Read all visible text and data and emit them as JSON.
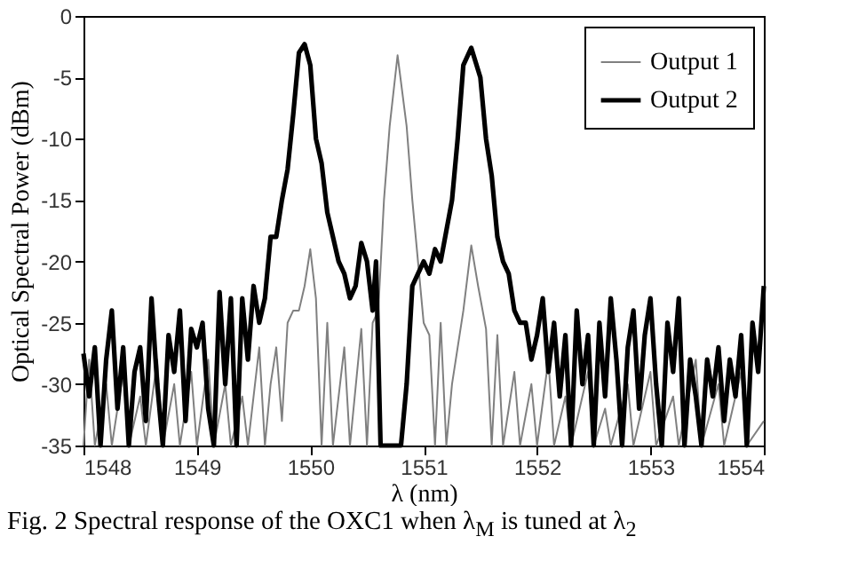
{
  "chart_data": {
    "type": "line",
    "xlabel": "λ (nm)",
    "ylabel": "Optical Spectral Power (dBm)",
    "xlim": [
      1548,
      1554
    ],
    "xticks": [
      1548,
      1549,
      1550,
      1551,
      1552,
      1553,
      1554
    ],
    "ylim": [
      -35,
      0
    ],
    "yticks": [
      -35,
      -30,
      -25,
      -20,
      -15,
      -10,
      -5,
      0
    ],
    "grid": false,
    "legend": "top right",
    "line_style": "solid",
    "marker": "none",
    "annotations": [
      "Fig. 2 Spectral response of the OXC1 when λ$_{M}$ is tuned at λ$_{2}$"
    ],
    "series": [
      {
        "name": "Output 1",
        "color": "#808080",
        "x": [
          1548.0,
          1548.05,
          1548.1,
          1548.2,
          1548.25,
          1548.35,
          1548.4,
          1548.5,
          1548.55,
          1548.65,
          1548.7,
          1548.8,
          1548.85,
          1548.95,
          1549.0,
          1549.1,
          1549.15,
          1549.25,
          1549.3,
          1549.4,
          1549.45,
          1549.55,
          1549.6,
          1549.65,
          1549.7,
          1549.75,
          1549.8,
          1549.85,
          1549.9,
          1549.95,
          1550.0,
          1550.05,
          1550.1,
          1550.15,
          1550.2,
          1550.3,
          1550.35,
          1550.45,
          1550.5,
          1550.55,
          1550.6,
          1550.65,
          1550.7,
          1550.77,
          1550.85,
          1550.9,
          1550.95,
          1551.0,
          1551.05,
          1551.1,
          1551.15,
          1551.2,
          1551.25,
          1551.3,
          1551.35,
          1551.42,
          1551.48,
          1551.55,
          1551.6,
          1551.65,
          1551.7,
          1551.8,
          1551.85,
          1551.95,
          1552.0,
          1552.1,
          1552.15,
          1552.25,
          1552.3,
          1552.45,
          1552.5,
          1552.6,
          1552.65,
          1552.8,
          1552.85,
          1553.0,
          1553.05,
          1553.2,
          1553.25,
          1553.4,
          1553.45,
          1553.6,
          1553.65,
          1553.8,
          1553.85,
          1554.0
        ],
        "values": [
          -35,
          -28,
          -35,
          -30,
          -35,
          -29,
          -35,
          -31,
          -35,
          -28,
          -35,
          -30,
          -35,
          -29,
          -35,
          -28,
          -35,
          -30,
          -35,
          -31,
          -35,
          -27,
          -35,
          -30,
          -27,
          -33,
          -25,
          -24,
          -24,
          -22,
          -19,
          -23,
          -35,
          -25,
          -35,
          -27,
          -35,
          -25.5,
          -35,
          -25,
          -24,
          -15,
          -9,
          -3.2,
          -9,
          -15,
          -20,
          -25,
          -26,
          -35,
          -25,
          -35,
          -30,
          -27,
          -24,
          -18.7,
          -22,
          -25.5,
          -35,
          -26,
          -35,
          -29,
          -35,
          -30,
          -35,
          -28,
          -35,
          -31,
          -35,
          -29,
          -35,
          -32,
          -35,
          -30,
          -35,
          -29,
          -35,
          -31,
          -35,
          -28,
          -35,
          -30,
          -35,
          -29,
          -35,
          -33
        ]
      },
      {
        "name": "Output 2",
        "color": "#000000",
        "x": [
          1548.0,
          1548.05,
          1548.1,
          1548.15,
          1548.2,
          1548.25,
          1548.3,
          1548.35,
          1548.4,
          1548.45,
          1548.5,
          1548.55,
          1548.6,
          1548.65,
          1548.7,
          1548.75,
          1548.8,
          1548.85,
          1548.9,
          1548.95,
          1549.0,
          1549.05,
          1549.1,
          1549.15,
          1549.2,
          1549.25,
          1549.3,
          1549.35,
          1549.4,
          1549.45,
          1549.5,
          1549.55,
          1549.6,
          1549.65,
          1549.7,
          1549.75,
          1549.8,
          1549.85,
          1549.9,
          1549.95,
          1550.0,
          1550.05,
          1550.1,
          1550.15,
          1550.2,
          1550.25,
          1550.3,
          1550.35,
          1550.4,
          1550.45,
          1550.5,
          1550.55,
          1550.58,
          1550.62,
          1550.7,
          1550.8,
          1550.85,
          1550.9,
          1550.95,
          1551.0,
          1551.05,
          1551.1,
          1551.15,
          1551.2,
          1551.25,
          1551.3,
          1551.35,
          1551.42,
          1551.5,
          1551.55,
          1551.6,
          1551.65,
          1551.7,
          1551.75,
          1551.8,
          1551.85,
          1551.9,
          1551.95,
          1552.0,
          1552.05,
          1552.1,
          1552.15,
          1552.2,
          1552.25,
          1552.3,
          1552.35,
          1552.4,
          1552.45,
          1552.5,
          1552.55,
          1552.6,
          1552.65,
          1552.7,
          1552.75,
          1552.8,
          1552.85,
          1552.9,
          1552.95,
          1553.0,
          1553.05,
          1553.1,
          1553.15,
          1553.2,
          1553.25,
          1553.3,
          1553.35,
          1553.4,
          1553.45,
          1553.5,
          1553.55,
          1553.6,
          1553.65,
          1553.7,
          1553.75,
          1553.8,
          1553.85,
          1553.9,
          1553.95,
          1554.0
        ],
        "values": [
          -27.5,
          -31,
          -27,
          -35,
          -28,
          -24,
          -32,
          -27,
          -35,
          -29,
          -27,
          -33,
          -23,
          -30,
          -35,
          -26,
          -29,
          -24,
          -33,
          -25.5,
          -27,
          -25,
          -32,
          -35,
          -22.5,
          -30,
          -23,
          -35,
          -23,
          -28,
          -22,
          -25,
          -23,
          -18,
          -18,
          -15,
          -12.5,
          -8,
          -3,
          -2.3,
          -4,
          -10,
          -12,
          -16,
          -18,
          -20,
          -21,
          -23,
          -22,
          -18.5,
          -20,
          -24,
          -20,
          -35,
          -35,
          -35,
          -30,
          -22,
          -21,
          -20,
          -21,
          -19,
          -20,
          -17.5,
          -15,
          -10,
          -4,
          -2.6,
          -5,
          -10,
          -13,
          -18,
          -20,
          -21,
          -24,
          -25,
          -25,
          -28,
          -26,
          -23,
          -29,
          -25,
          -31,
          -26,
          -35,
          -24,
          -30,
          -26,
          -35,
          -25,
          -31,
          -23,
          -28,
          -35,
          -27,
          -24,
          -32,
          -26,
          -23,
          -30,
          -35,
          -25,
          -29,
          -23,
          -35,
          -28,
          -31,
          -35,
          -28,
          -31,
          -27,
          -33,
          -28,
          -31,
          -26,
          -35,
          -25,
          -29,
          -22
        ]
      }
    ]
  }
}
